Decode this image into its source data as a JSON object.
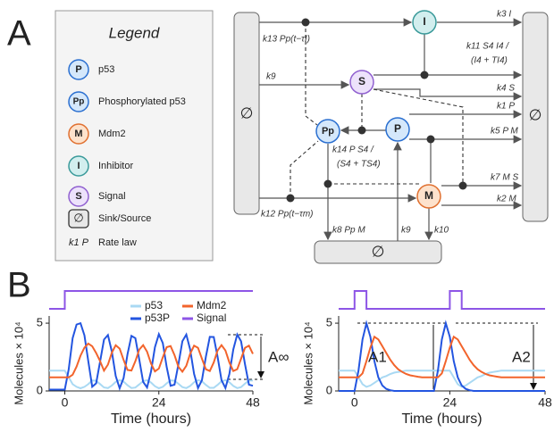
{
  "panel_labels": [
    "A",
    "B"
  ],
  "legend": {
    "title": "Legend",
    "entries": [
      {
        "symbol": "P",
        "label": "p53"
      },
      {
        "symbol": "Pp",
        "label": "Phosphorylated p53"
      },
      {
        "symbol": "M",
        "label": "Mdm2"
      },
      {
        "symbol": "I",
        "label": "Inhibitor"
      },
      {
        "symbol": "S",
        "label": "Signal"
      },
      {
        "symbol": "∅",
        "label": "Sink/Source"
      },
      {
        "symbol": "k1 P",
        "label": "Rate law"
      }
    ]
  },
  "diagram": {
    "nodes": [
      "I",
      "S",
      "Pp",
      "P",
      "M"
    ],
    "sinks": [
      "∅",
      "∅",
      "∅"
    ],
    "rate_laws": [
      "k13 Pp(t−τI)",
      "k9",
      "k12 Pp(t−τm)",
      "k3 I",
      "k11 S4 I4 /",
      "(I4 + TI4)",
      "k4 S",
      "k1 P",
      "k14 P S4 /",
      "(S4 + TS4)",
      "k5 P M",
      "k7 M S",
      "k2 M",
      "k8 Pp M",
      "k9",
      "k10"
    ]
  },
  "chart_data": [
    {
      "type": "line",
      "xlabel": "Time (hours)",
      "ylabel": "Molecules × 10⁴",
      "x": [
        -4,
        -3,
        -2,
        -1,
        0,
        1,
        2,
        3,
        4,
        5,
        6,
        7,
        8,
        9,
        10,
        11,
        12,
        13,
        14,
        15,
        16,
        17,
        18,
        19,
        20,
        21,
        22,
        23,
        24,
        25,
        26,
        27,
        28,
        29,
        30,
        31,
        32,
        33,
        34,
        35,
        36,
        37,
        38,
        39,
        40,
        41,
        42,
        43,
        44,
        45,
        46,
        47,
        48
      ],
      "xlim": [
        -4,
        48
      ],
      "xticks": [
        0,
        24,
        48
      ],
      "ylim": [
        0,
        5.4
      ],
      "yticks": [
        0,
        5
      ],
      "legend": true,
      "series": [
        {
          "name": "p53",
          "color": "#a9d9f3",
          "values": [
            1.5,
            1.5,
            1.5,
            1.5,
            1.5,
            1.0,
            0.5,
            0.3,
            0.2,
            0.3,
            0.5,
            0.78,
            0.75,
            0.51,
            0.26,
            0.21,
            0.4,
            0.67,
            0.8,
            0.69,
            0.42,
            0.22,
            0.25,
            0.48,
            0.73,
            0.79,
            0.62,
            0.35,
            0.2,
            0.3,
            0.56,
            0.77,
            0.76,
            0.53,
            0.28,
            0.21,
            0.37,
            0.64,
            0.8,
            0.71,
            0.45,
            0.23,
            0.23,
            0.45,
            0.71,
            0.8,
            0.64,
            0.37,
            0.21,
            0.28,
            0.54,
            0.76,
            0.77
          ]
        },
        {
          "name": "p53P",
          "color": "#2355e0",
          "values": [
            0.1,
            0.1,
            0.1,
            0.1,
            0.1,
            1.6,
            3.9,
            4.9,
            5.0,
            4.1,
            2.2,
            0.31,
            0.56,
            2.16,
            3.79,
            4.12,
            2.89,
            1.1,
            0.2,
            0.95,
            2.71,
            4.06,
            3.89,
            2.34,
            0.67,
            0.26,
            1.43,
            3.23,
            4.19,
            3.53,
            1.78,
            0.38,
            0.46,
            1.97,
            3.67,
            4.16,
            3.06,
            1.26,
            0.22,
            0.8,
            2.52,
            3.99,
            3.98,
            2.52,
            0.8,
            0.22,
            1.25,
            3.06,
            4.16,
            3.66,
            1.96,
            0.46,
            0.38
          ]
        },
        {
          "name": "Mdm2",
          "color": "#f2642c",
          "values": [
            1.0,
            1.0,
            1.0,
            1.0,
            1.0,
            1.0,
            1.2,
            1.8,
            2.6,
            3.2,
            3.5,
            3.3,
            2.8,
            2.2,
            1.5,
            1.94,
            2.83,
            3.37,
            3.12,
            2.29,
            1.55,
            1.51,
            2.19,
            3.05,
            3.38,
            2.9,
            2.02,
            1.44,
            1.65,
            2.48,
            3.23,
            3.31,
            2.65,
            1.78,
            1.42,
            1.86,
            2.74,
            3.34,
            3.18,
            2.38,
            1.6,
            1.47,
            2.1,
            2.98,
            3.38,
            2.98,
            2.1,
            1.47,
            1.6,
            2.38,
            3.18,
            3.34,
            2.74
          ]
        }
      ],
      "signal": {
        "name": "Signal",
        "color": "#8d55e6",
        "x": [
          -4,
          0,
          0,
          48
        ],
        "values": [
          0,
          0,
          1,
          1
        ]
      },
      "annotations": [
        "A∞"
      ]
    },
    {
      "type": "line",
      "xlabel": "Time (hours)",
      "ylabel": "Molecules × 10⁴",
      "x": [
        -4,
        -3,
        -2,
        -1,
        0,
        1,
        2,
        3,
        4,
        5,
        6,
        7,
        8,
        9,
        10,
        11,
        12,
        13,
        14,
        15,
        16,
        17,
        18,
        19,
        20,
        21,
        22,
        23,
        24,
        25,
        26,
        27,
        28,
        29,
        30,
        31,
        32,
        33,
        34,
        35,
        36,
        37,
        38,
        39,
        40,
        41,
        42,
        43,
        44,
        45,
        46,
        47,
        48
      ],
      "xlim": [
        -4,
        48
      ],
      "xticks": [
        0,
        24,
        48
      ],
      "ylim": [
        0,
        5.4
      ],
      "yticks": [
        0,
        5
      ],
      "legend": false,
      "series": [
        {
          "color": "#a9d9f3",
          "values": [
            1.5,
            1.5,
            1.5,
            1.5,
            1.5,
            1.0,
            0.5,
            0.3,
            0.4,
            0.6,
            0.8,
            1.0,
            1.1,
            1.25,
            1.35,
            1.4,
            1.45,
            1.5,
            1.5,
            1.5,
            1.5,
            1.5,
            1.5,
            1.5,
            1.5,
            1.5,
            1.5,
            1.5,
            1.5,
            1.0,
            0.5,
            0.3,
            0.4,
            0.6,
            0.8,
            1.0,
            1.1,
            1.25,
            1.35,
            1.4,
            1.45,
            1.5,
            1.5,
            1.5,
            1.5,
            1.5,
            1.5,
            1.5,
            1.5,
            1.5,
            1.5,
            1.5,
            1.5
          ]
        },
        {
          "color": "#2355e0",
          "values": [
            0,
            0,
            0,
            0,
            0,
            1.5,
            3.8,
            5.0,
            4.0,
            2.2,
            1.0,
            0.4,
            0.15,
            0.05,
            0,
            0,
            0,
            0,
            0,
            0,
            0,
            0,
            0,
            0,
            0,
            1.5,
            3.8,
            5.0,
            4.0,
            2.2,
            1.0,
            0.4,
            0.15,
            0.05,
            0,
            0,
            0,
            0,
            0,
            0,
            0,
            0,
            0,
            0,
            0,
            0,
            0,
            0,
            0,
            0,
            0,
            0,
            0
          ]
        },
        {
          "color": "#f2642c",
          "values": [
            1.0,
            1.0,
            1.0,
            1.0,
            1.0,
            1.0,
            1.3,
            2.2,
            3.2,
            4.0,
            3.8,
            3.3,
            2.8,
            2.3,
            1.9,
            1.6,
            1.4,
            1.25,
            1.15,
            1.1,
            1.05,
            1.0,
            1.0,
            1.0,
            1.0,
            1.0,
            1.3,
            2.2,
            3.2,
            4.0,
            3.8,
            3.3,
            2.8,
            2.3,
            1.9,
            1.6,
            1.4,
            1.25,
            1.15,
            1.1,
            1.05,
            1.0,
            1.0,
            1.0,
            1.0,
            1.0,
            1.0,
            1.0,
            1.0,
            1.0,
            1.0,
            1.0,
            1.0
          ]
        }
      ],
      "signal": {
        "color": "#8d55e6",
        "x": [
          -4,
          0,
          0,
          3,
          3,
          24,
          24,
          27,
          27,
          48
        ],
        "values": [
          0,
          0,
          1,
          1,
          0,
          0,
          1,
          1,
          0,
          0
        ]
      },
      "annotations": [
        "A1",
        "A2"
      ]
    }
  ]
}
